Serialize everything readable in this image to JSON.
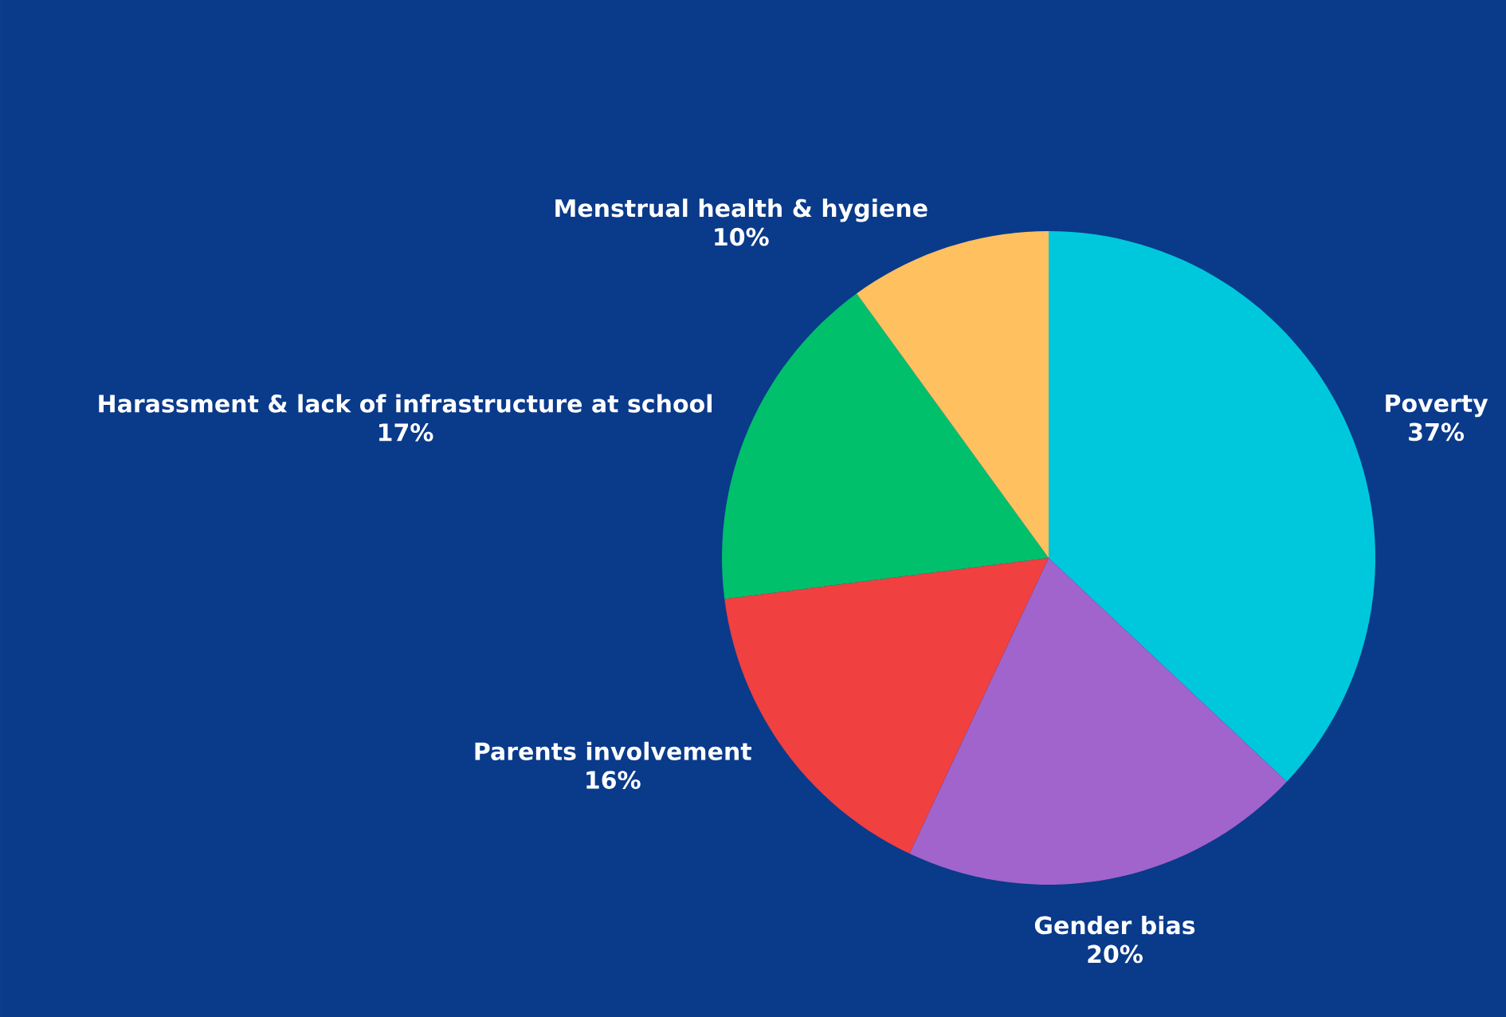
{
  "chart_data": {
    "type": "pie",
    "categories": [
      "Poverty",
      "Gender bias",
      "Parents involvement",
      "Harassment & lack of infrastructure at school",
      "Menstrual health & hygiene"
    ],
    "values": [
      37,
      20,
      16,
      17,
      10
    ],
    "value_labels": [
      "37%",
      "20%",
      "16%",
      "17%",
      "10%"
    ],
    "colors": [
      "#00c8dc",
      "#a064cc",
      "#f04040",
      "#00c06c",
      "#ffc060"
    ]
  }
}
